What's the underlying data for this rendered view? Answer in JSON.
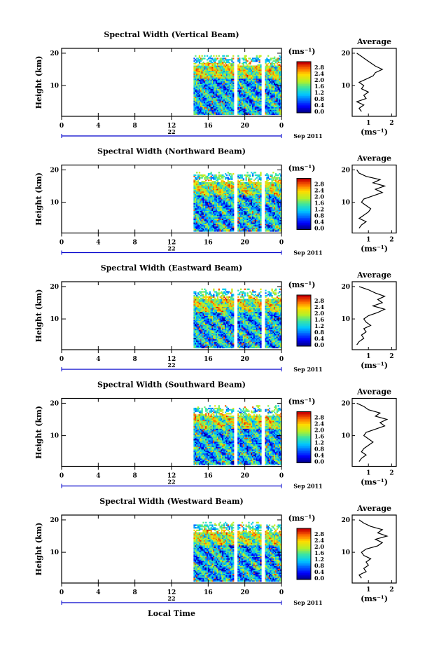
{
  "chart_data": {
    "type": "heatmap",
    "x_label": "Local Time",
    "y_label": "Height (km)",
    "date_label": "Sep 2011",
    "day_label": "22",
    "unit_label": "(ms⁻¹)",
    "avg_title": "Average",
    "x_ticks": [
      "0",
      "4",
      "8",
      "12",
      "16",
      "20",
      "0"
    ],
    "y_ticks": [
      "20",
      "10"
    ],
    "colorbar_ticks": [
      "2.8",
      "2.4",
      "2.0",
      "1.6",
      "1.2",
      "0.8",
      "0.4",
      "0.0"
    ],
    "data_blocks_hours": [
      [
        14.4,
        18.8
      ],
      [
        19.2,
        21.8
      ],
      [
        22.2,
        24.0
      ]
    ],
    "panels": [
      {
        "title": "Spectral Width (Vertical Beam)",
        "avg_ticks": [
          "1",
          "2"
        ],
        "avg_range": [
          0.3,
          2.2
        ],
        "avg_profile": [
          [
            2,
            0.7
          ],
          [
            3,
            0.6
          ],
          [
            4,
            0.8
          ],
          [
            5,
            0.5
          ],
          [
            6,
            0.9
          ],
          [
            7,
            0.8
          ],
          [
            8,
            1.0
          ],
          [
            9,
            0.7
          ],
          [
            10,
            0.8
          ],
          [
            11,
            0.6
          ],
          [
            12,
            0.9
          ],
          [
            13,
            1.2
          ],
          [
            14,
            1.3
          ],
          [
            15,
            1.6
          ],
          [
            16,
            1.3
          ],
          [
            17,
            1.1
          ],
          [
            18,
            0.9
          ],
          [
            19,
            0.7
          ],
          [
            20,
            0.5
          ]
        ]
      },
      {
        "title": "Spectral Width (Northward Beam)",
        "avg_ticks": [
          "1",
          "2"
        ],
        "avg_range": [
          0.3,
          2.2
        ],
        "avg_profile": [
          [
            2,
            0.6
          ],
          [
            3,
            0.7
          ],
          [
            4,
            0.9
          ],
          [
            5,
            0.6
          ],
          [
            6,
            0.8
          ],
          [
            7,
            1.0
          ],
          [
            8,
            1.1
          ],
          [
            9,
            0.9
          ],
          [
            10,
            0.7
          ],
          [
            11,
            0.8
          ],
          [
            12,
            1.2
          ],
          [
            13,
            1.6
          ],
          [
            14,
            1.3
          ],
          [
            15,
            1.7
          ],
          [
            16,
            1.2
          ],
          [
            17,
            1.5
          ],
          [
            18,
            0.9
          ],
          [
            19,
            0.6
          ],
          [
            20,
            0.5
          ]
        ]
      },
      {
        "title": "Spectral Width (Eastward Beam)",
        "avg_ticks": [
          "1",
          "2"
        ],
        "avg_range": [
          0.3,
          2.2
        ],
        "avg_profile": [
          [
            2,
            0.5
          ],
          [
            3,
            0.6
          ],
          [
            4,
            0.8
          ],
          [
            5,
            0.7
          ],
          [
            6,
            0.9
          ],
          [
            7,
            0.8
          ],
          [
            8,
            1.1
          ],
          [
            9,
            0.9
          ],
          [
            10,
            0.8
          ],
          [
            11,
            1.0
          ],
          [
            12,
            1.4
          ],
          [
            13,
            1.7
          ],
          [
            14,
            1.2
          ],
          [
            15,
            1.6
          ],
          [
            16,
            1.4
          ],
          [
            17,
            1.7
          ],
          [
            18,
            1.3
          ],
          [
            19,
            1.0
          ],
          [
            20,
            0.6
          ]
        ]
      },
      {
        "title": "Spectral Width (Southward Beam)",
        "avg_ticks": [
          "1",
          "2"
        ],
        "avg_range": [
          0.3,
          2.2
        ],
        "avg_profile": [
          [
            2,
            0.6
          ],
          [
            3,
            0.7
          ],
          [
            4,
            0.9
          ],
          [
            5,
            0.7
          ],
          [
            6,
            0.8
          ],
          [
            7,
            1.0
          ],
          [
            8,
            1.2
          ],
          [
            9,
            1.0
          ],
          [
            10,
            0.8
          ],
          [
            11,
            0.9
          ],
          [
            12,
            1.3
          ],
          [
            13,
            1.7
          ],
          [
            14,
            1.5
          ],
          [
            15,
            1.8
          ],
          [
            16,
            1.3
          ],
          [
            17,
            1.5
          ],
          [
            18,
            1.0
          ],
          [
            19,
            0.8
          ],
          [
            20,
            0.5
          ]
        ]
      },
      {
        "title": "Spectral Width (Westward Beam)",
        "avg_ticks": [
          "1",
          "2"
        ],
        "avg_range": [
          0.3,
          2.2
        ],
        "avg_profile": [
          [
            2,
            0.7
          ],
          [
            3,
            0.6
          ],
          [
            4,
            0.9
          ],
          [
            5,
            0.8
          ],
          [
            6,
            1.0
          ],
          [
            7,
            0.9
          ],
          [
            8,
            1.1
          ],
          [
            9,
            0.8
          ],
          [
            10,
            0.7
          ],
          [
            11,
            0.9
          ],
          [
            12,
            1.4
          ],
          [
            13,
            1.6
          ],
          [
            14,
            1.3
          ],
          [
            15,
            1.8
          ],
          [
            16,
            1.4
          ],
          [
            17,
            1.6
          ],
          [
            18,
            1.1
          ],
          [
            19,
            0.8
          ],
          [
            20,
            0.6
          ]
        ]
      }
    ]
  }
}
